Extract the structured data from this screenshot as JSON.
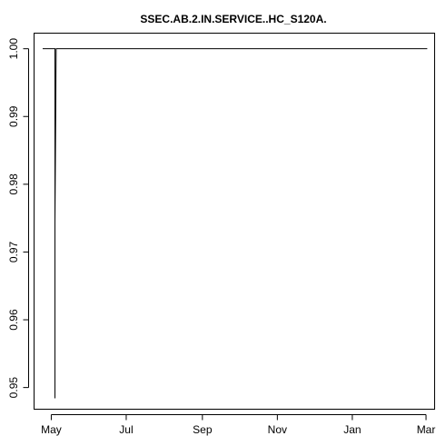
{
  "chart_data": {
    "type": "line",
    "title": "SSEC.AB.2.IN.SERVICE..HC_S120A.",
    "xlabel": "",
    "ylabel": "",
    "x_ticks": [
      "May",
      "Jul",
      "Sep",
      "Nov",
      "Jan",
      "Mar"
    ],
    "x_tick_dates": [
      "2015-05-01",
      "2015-07-01",
      "2015-09-01",
      "2015-11-01",
      "2016-01-01",
      "2016-03-01"
    ],
    "y_ticks": [
      "0.95",
      "0.96",
      "0.97",
      "0.98",
      "0.99",
      "1.00"
    ],
    "y_tick_values": [
      0.95,
      0.96,
      0.97,
      0.98,
      0.99,
      1.0
    ],
    "xlim": [
      "2015-04-17",
      "2016-03-08"
    ],
    "ylim": [
      0.9468,
      1.0023
    ],
    "grid": false,
    "series": [
      {
        "color": "#000000",
        "points": [
          [
            "2015-04-24",
            1.0
          ],
          [
            "2015-05-04",
            1.0
          ],
          [
            "2015-05-04",
            0.9741
          ],
          [
            "2015-05-04",
            0.9484
          ],
          [
            "2015-05-04",
            0.9745
          ],
          [
            "2015-05-05",
            1.0
          ],
          [
            "2016-03-02",
            1.0
          ]
        ]
      }
    ]
  }
}
